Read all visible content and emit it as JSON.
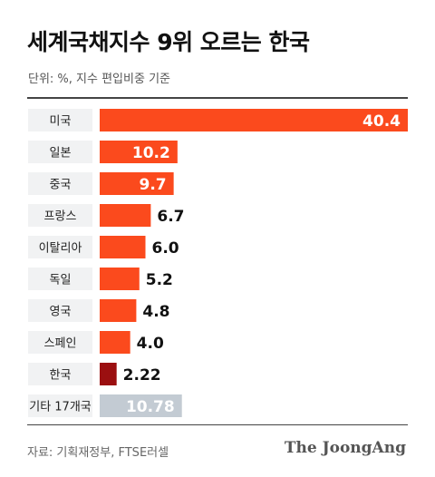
{
  "title": "세계국채지수 9위 오르는 한국",
  "subtitle": "단위: %, 지수 편입비중 기준",
  "source": "자료: 기획재정부, FTSE러셀",
  "brand": "The JoongAng",
  "colors": {
    "bar_default": "#fb4a1d",
    "bar_highlight": "#9b0f10",
    "bar_other": "#c3cbd3",
    "label_bg": "#f1f2f3"
  },
  "chart_data": {
    "type": "bar",
    "orientation": "horizontal",
    "categories": [
      "미국",
      "일본",
      "중국",
      "프랑스",
      "이탈리아",
      "독일",
      "영국",
      "스페인",
      "한국",
      "기타 17개국"
    ],
    "values": [
      40.4,
      10.2,
      9.7,
      6.7,
      6.0,
      5.2,
      4.8,
      4.0,
      2.22,
      10.78
    ],
    "value_labels": [
      "40.4",
      "10.2",
      "9.7",
      "6.7",
      "6.0",
      "5.2",
      "4.8",
      "4.0",
      "2.22",
      "10.78"
    ],
    "highlight": [
      "default",
      "default",
      "default",
      "default",
      "default",
      "default",
      "default",
      "default",
      "highlight",
      "other"
    ],
    "xlim": [
      0,
      40.4
    ],
    "unit": "%",
    "grid": false,
    "legend": "none"
  }
}
